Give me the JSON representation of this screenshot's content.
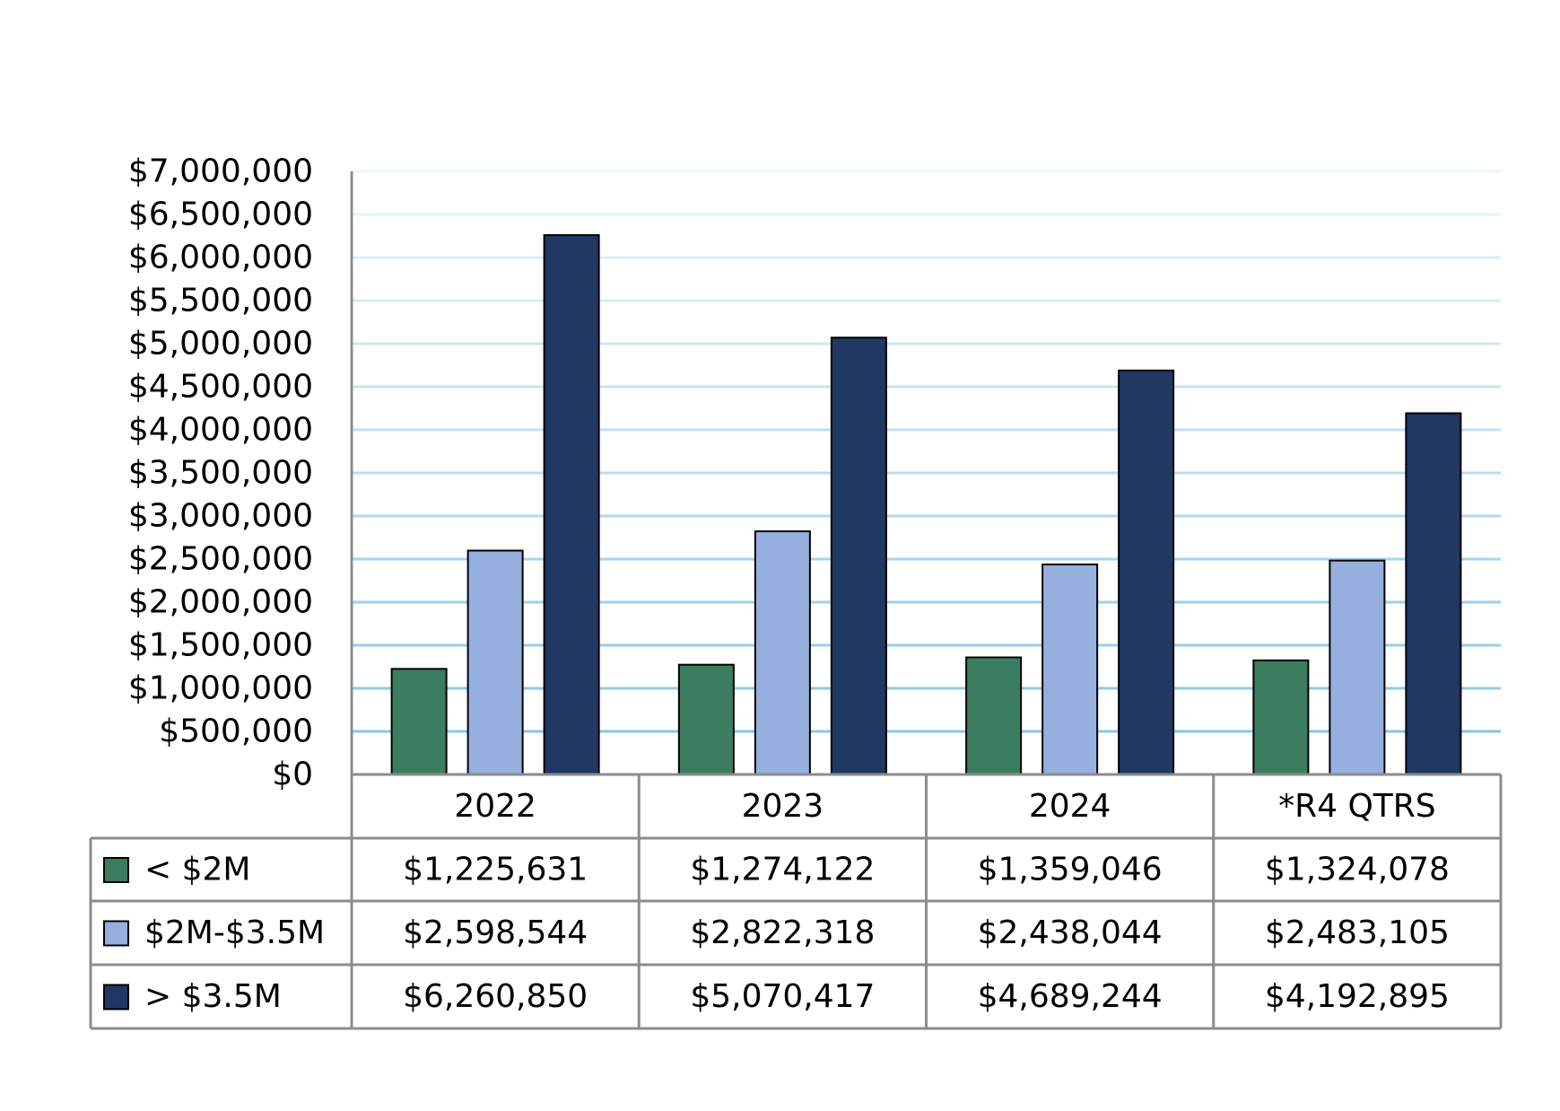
{
  "chart_data": {
    "type": "bar",
    "categories": [
      "2022",
      "2023",
      "2024",
      "*R4 QTRS"
    ],
    "series": [
      {
        "name": "< $2M",
        "values": [
          1225631,
          1274122,
          1359046,
          1324078
        ],
        "labels": [
          "$1,225,631",
          "$1,274,122",
          "$1,359,046",
          "$1,324,078"
        ],
        "color": "#3a7d60"
      },
      {
        "name": "$2M-$3.5M",
        "values": [
          2598544,
          2822318,
          2438044,
          2483105
        ],
        "labels": [
          "$2,598,544",
          "$2,822,318",
          "$2,438,044",
          "$2,483,105"
        ],
        "color": "#95b0de"
      },
      {
        "name": "> $3.5M",
        "values": [
          6260850,
          5070417,
          4689244,
          4192895
        ],
        "labels": [
          "$6,260,850",
          "$5,070,417",
          "$4,689,244",
          "$4,192,895"
        ],
        "color": "#203864"
      }
    ],
    "ylim": [
      0,
      7000000
    ],
    "y_ticks": [
      0,
      500000,
      1000000,
      1500000,
      2000000,
      2500000,
      3000000,
      3500000,
      4000000,
      4500000,
      5000000,
      5500000,
      6000000,
      6500000,
      7000000
    ],
    "y_tick_labels": [
      "$0",
      "$500,000",
      "$1,000,000",
      "$1,500,000",
      "$2,000,000",
      "$2,500,000",
      "$3,000,000",
      "$3,500,000",
      "$4,000,000",
      "$4,500,000",
      "$5,000,000",
      "$5,500,000",
      "$6,000,000",
      "$6,500,000",
      "$7,000,000"
    ],
    "grid": true,
    "legend": "data-table",
    "title": "",
    "xlabel": "",
    "ylabel": ""
  }
}
